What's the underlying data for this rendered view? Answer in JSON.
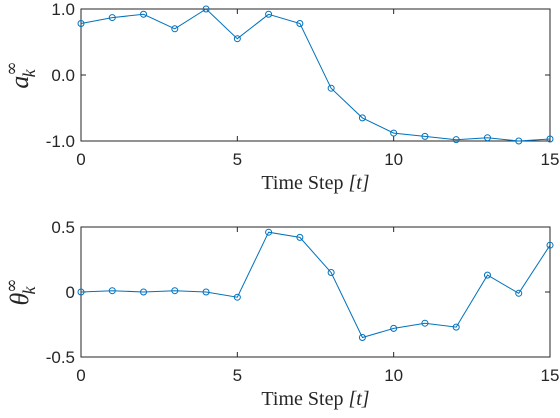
{
  "colors": {
    "series": "#0072BD",
    "axis": "#262626"
  },
  "chart_data": [
    {
      "type": "line",
      "ylabel": {
        "symbol": "a",
        "superscript": "∞",
        "subscript": "k"
      },
      "xlabel": {
        "text": "Time Step ",
        "var": "[t]"
      },
      "xlim": [
        0,
        15
      ],
      "ylim": [
        -1,
        1
      ],
      "xticks": [
        0,
        5,
        10,
        15
      ],
      "xtick_labels": [
        "0",
        "5",
        "10",
        "15"
      ],
      "yticks": [
        -1,
        0,
        1
      ],
      "ytick_labels": [
        "-1.0",
        "0.0",
        "1.0"
      ],
      "marker": "circle",
      "x": [
        0,
        1,
        2,
        3,
        4,
        5,
        6,
        7,
        8,
        9,
        10,
        11,
        12,
        13,
        14,
        15
      ],
      "y": [
        0.78,
        0.87,
        0.92,
        0.7,
        1.0,
        0.55,
        0.92,
        0.78,
        -0.2,
        -0.65,
        -0.88,
        -0.93,
        -0.98,
        -0.95,
        -1.0,
        -0.97
      ]
    },
    {
      "type": "line",
      "ylabel": {
        "symbol": "θ",
        "superscript": "∞",
        "subscript": "k"
      },
      "xlabel": {
        "text": "Time Step ",
        "var": "[t]"
      },
      "xlim": [
        0,
        15
      ],
      "ylim": [
        -0.5,
        0.5
      ],
      "xticks": [
        0,
        5,
        10,
        15
      ],
      "xtick_labels": [
        "0",
        "5",
        "10",
        "15"
      ],
      "yticks": [
        -0.5,
        0,
        0.5
      ],
      "ytick_labels": [
        "-0.5",
        "0",
        "0.5"
      ],
      "marker": "circle",
      "x": [
        0,
        1,
        2,
        3,
        4,
        5,
        6,
        7,
        8,
        9,
        10,
        11,
        12,
        13,
        14,
        15
      ],
      "y": [
        0.0,
        0.01,
        0.0,
        0.01,
        0.0,
        -0.04,
        0.46,
        0.42,
        0.15,
        -0.35,
        -0.28,
        -0.24,
        -0.27,
        0.13,
        -0.01,
        0.36
      ]
    }
  ]
}
